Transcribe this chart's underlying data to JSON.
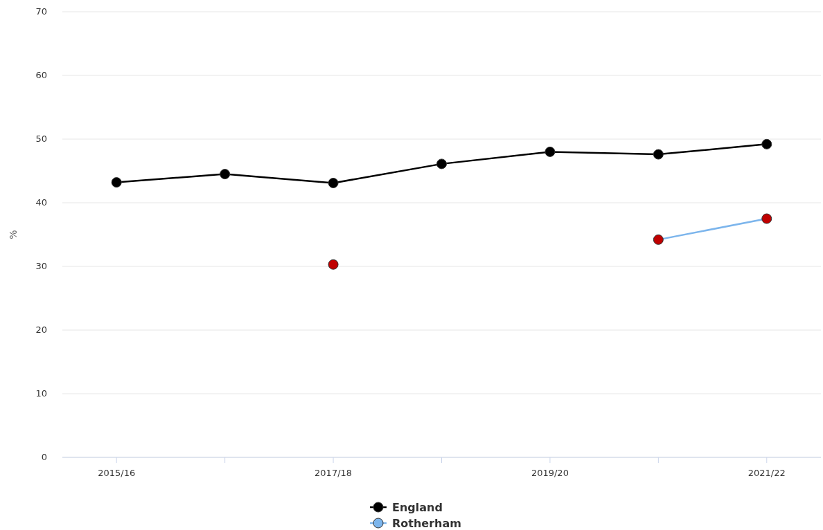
{
  "chart_data": {
    "type": "line",
    "ylabel": "%",
    "categories": [
      "2015/16",
      null,
      "2017/18",
      null,
      "2019/20",
      null,
      "2021/22"
    ],
    "series": [
      {
        "name": "England",
        "color": "#000000",
        "values": [
          43.2,
          44.5,
          43.1,
          46.1,
          48.0,
          47.6,
          49.2
        ]
      },
      {
        "name": "Rotherham",
        "color": "#7cb5ec",
        "colors": [
          null,
          null,
          "#c00000",
          null,
          null,
          "#c00000",
          "#c00000"
        ],
        "values": [
          null,
          null,
          30.3,
          null,
          null,
          34.2,
          37.5
        ]
      }
    ],
    "ylim": [
      0,
      70
    ],
    "yticks": [
      0,
      10,
      20,
      30,
      40,
      50,
      60,
      70
    ],
    "grid": "y",
    "legend": "bottom",
    "marker": "circle"
  }
}
